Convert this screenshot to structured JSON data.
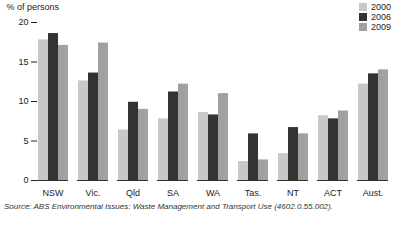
{
  "chart_data": {
    "type": "bar",
    "y_label": "% of persons",
    "caption": "Source: ABS Environmental Issues: Waste Management and Transport Use (4602.0.55.002).",
    "categories": [
      "NSW",
      "Vic.",
      "Qld",
      "SA",
      "WA",
      "Tas.",
      "NT",
      "ACT",
      "Aust."
    ],
    "series": [
      {
        "name": "2000",
        "color": "#c8c8c8",
        "values": [
          17.8,
          12.6,
          6.4,
          7.8,
          8.6,
          2.4,
          3.4,
          8.2,
          12.2
        ]
      },
      {
        "name": "2006",
        "color": "#333333",
        "values": [
          18.6,
          13.6,
          9.9,
          11.2,
          8.3,
          5.9,
          6.7,
          7.8,
          13.5
        ]
      },
      {
        "name": "2009",
        "color": "#a0a0a0",
        "values": [
          17.1,
          17.4,
          9.0,
          12.2,
          11.0,
          2.6,
          5.9,
          8.8,
          14.0
        ]
      }
    ],
    "ylim": [
      0,
      20
    ],
    "yticks": [
      0,
      5,
      10,
      15,
      20
    ],
    "grid": false,
    "legend": "top-right"
  }
}
